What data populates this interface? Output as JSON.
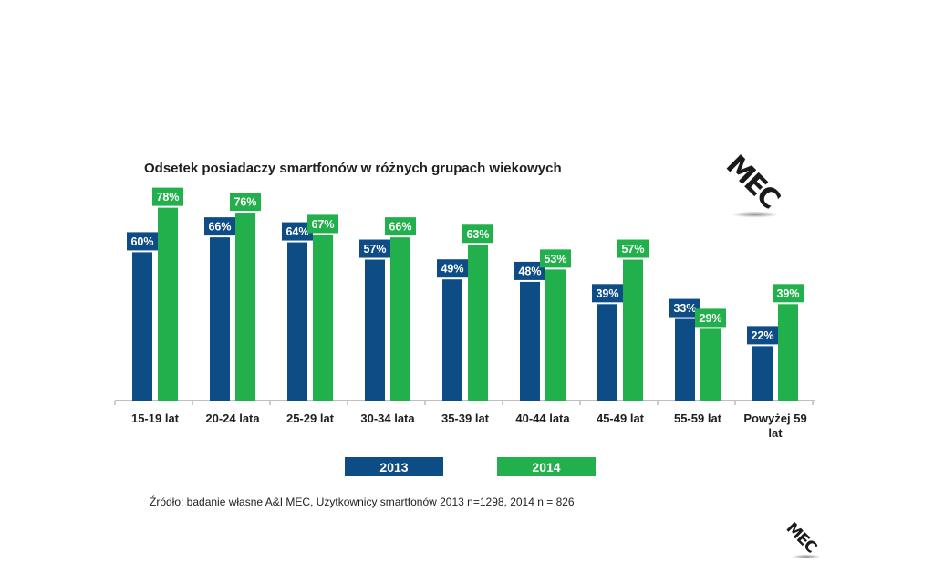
{
  "colors": {
    "s2013": "#0e4c86",
    "s2014": "#21b04b",
    "axis": "#9a9a9a",
    "logo": "#1a1a1a"
  },
  "chart_data": {
    "type": "bar",
    "title": "Odsetek posiadaczy smartfonów w różnych grupach wiekowych",
    "categories": [
      "15-19 lat",
      "20-24 lata",
      "25-29 lat",
      "30-34 lata",
      "35-39 lat",
      "40-44 lata",
      "45-49 lat",
      "55-59 lat",
      "Powyżej 59 lat"
    ],
    "series": [
      {
        "name": "2013",
        "values": [
          60,
          66,
          64,
          57,
          49,
          48,
          39,
          33,
          22
        ],
        "labels": [
          "60%",
          "66%",
          "64%",
          "57%",
          "49%",
          "48%",
          "39%",
          "33%",
          "22%"
        ]
      },
      {
        "name": "2014",
        "values": [
          78,
          76,
          67,
          66,
          63,
          53,
          57,
          29,
          39
        ],
        "labels": [
          "78%",
          "76%",
          "67%",
          "66%",
          "63%",
          "53%",
          "57%",
          "29%",
          "39%"
        ]
      }
    ],
    "ylim": [
      0,
      100
    ],
    "grid": false,
    "legend": "bottom"
  },
  "source": "Źródło: badanie własne A&I MEC, Użytkownicy smartfonów  2013 n=1298, 2014 n = 826",
  "logo": {
    "text": "MEC",
    "icon": "mec-logo-icon"
  }
}
